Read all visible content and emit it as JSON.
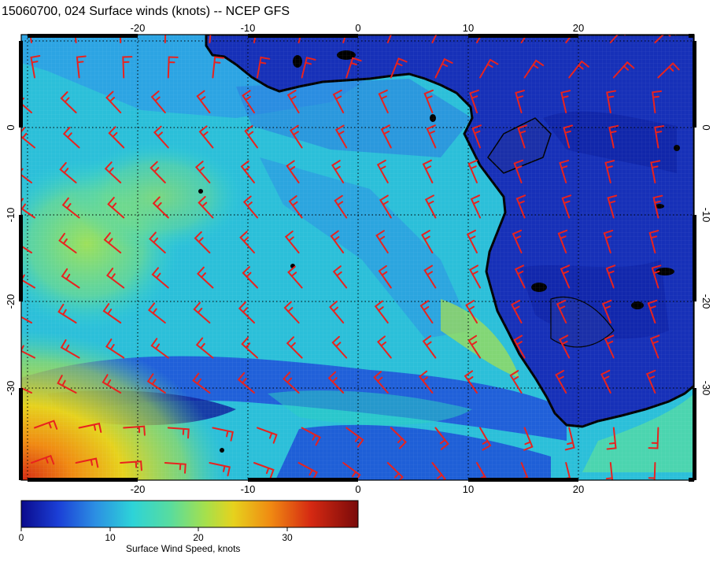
{
  "title": "15060700, 024 Surface winds (knots) -- NCEP GFS",
  "colors": {
    "land": "#1630b8",
    "coastline": "#000000",
    "barbs": "#e8221e",
    "grid": "#000000",
    "colormap": [
      "#0a0a8c",
      "#1b3fd6",
      "#2c8fe3",
      "#2dd3d8",
      "#57dca0",
      "#a8e04a",
      "#e6d21d",
      "#f08a12",
      "#d52912",
      "#7a0a0a"
    ]
  },
  "map": {
    "lon_labels": [
      "-20",
      "-10",
      "0",
      "10",
      "20"
    ],
    "lat_labels": [
      "0",
      "-10",
      "-20",
      "-30"
    ],
    "lon_range": [
      -30,
      30
    ],
    "lat_range": [
      -40,
      11
    ],
    "grid": "dotted every 10 degrees"
  },
  "colorbar": {
    "label": "Surface Wind Speed, knots",
    "tick_labels": [
      "0",
      "10",
      "20",
      "30"
    ],
    "range": [
      0,
      38
    ]
  }
}
